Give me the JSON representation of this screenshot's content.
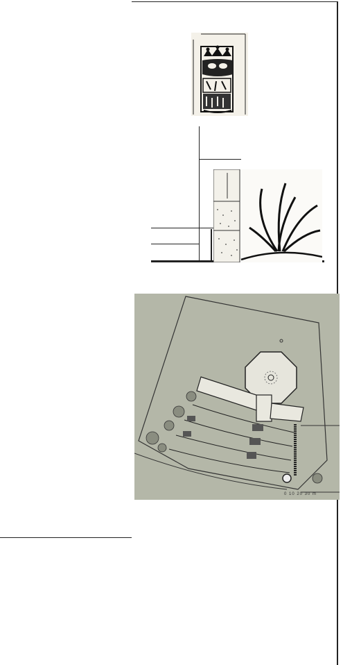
{
  "page": {
    "figures": [
      {
        "name": "crest-sketch",
        "icon": "crest-drawing"
      },
      {
        "name": "agave-stone-wall",
        "icon": "plant-drawing"
      },
      {
        "name": "garden-site-plan",
        "icon": "site-plan"
      }
    ],
    "plan": {
      "scale_label": "0 10 20 30 m"
    }
  }
}
